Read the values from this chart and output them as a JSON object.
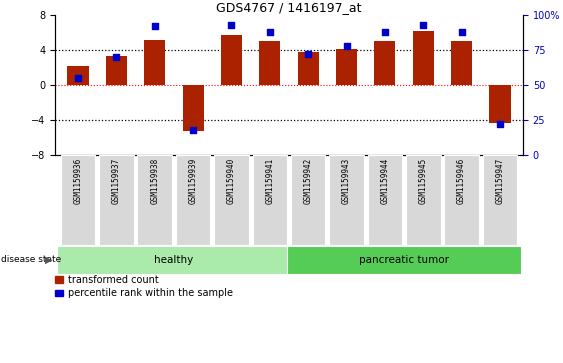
{
  "title": "GDS4767 / 1416197_at",
  "samples": [
    "GSM1159936",
    "GSM1159937",
    "GSM1159938",
    "GSM1159939",
    "GSM1159940",
    "GSM1159941",
    "GSM1159942",
    "GSM1159943",
    "GSM1159944",
    "GSM1159945",
    "GSM1159946",
    "GSM1159947"
  ],
  "transformed_count": [
    2.2,
    3.3,
    5.2,
    -5.3,
    5.7,
    5.0,
    3.8,
    4.1,
    5.0,
    6.2,
    5.0,
    -4.3
  ],
  "percentile_rank": [
    55,
    70,
    92,
    18,
    93,
    88,
    72,
    78,
    88,
    93,
    88,
    22
  ],
  "bar_color": "#AA2200",
  "dot_color": "#0000CC",
  "ylim": [
    -8,
    8
  ],
  "yticks_left": [
    -8,
    -4,
    0,
    4,
    8
  ],
  "yticks_right": [
    0,
    25,
    50,
    75,
    100
  ],
  "hlines_dotted": [
    -4,
    4
  ],
  "hline_red": 0,
  "bg_color": "#FFFFFF",
  "legend_items": [
    "transformed count",
    "percentile rank within the sample"
  ],
  "bar_width": 0.55,
  "group_data": [
    {
      "label": "healthy",
      "start": 0,
      "end": 6,
      "color": "#AAEAAA"
    },
    {
      "label": "pancreatic tumor",
      "start": 6,
      "end": 12,
      "color": "#55CC55"
    }
  ]
}
